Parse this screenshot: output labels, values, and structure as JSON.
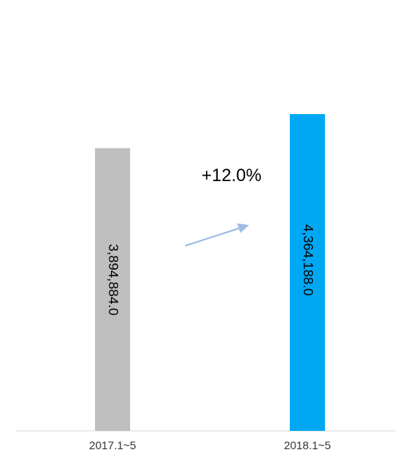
{
  "chart_data": {
    "type": "bar",
    "categories": [
      "2017.1~5",
      "2018.1~5"
    ],
    "values": [
      3894884.0,
      4364188.0
    ],
    "value_labels": [
      "3,894,884.0",
      "4,364,188.0"
    ],
    "colors": [
      "#bfbfbf",
      "#00a8f3"
    ],
    "annotation": {
      "text": "+12.0%",
      "arrow_color": "#9dbbe3"
    },
    "title": "",
    "xlabel": "",
    "ylabel": "",
    "grid": false,
    "legend": "none"
  }
}
